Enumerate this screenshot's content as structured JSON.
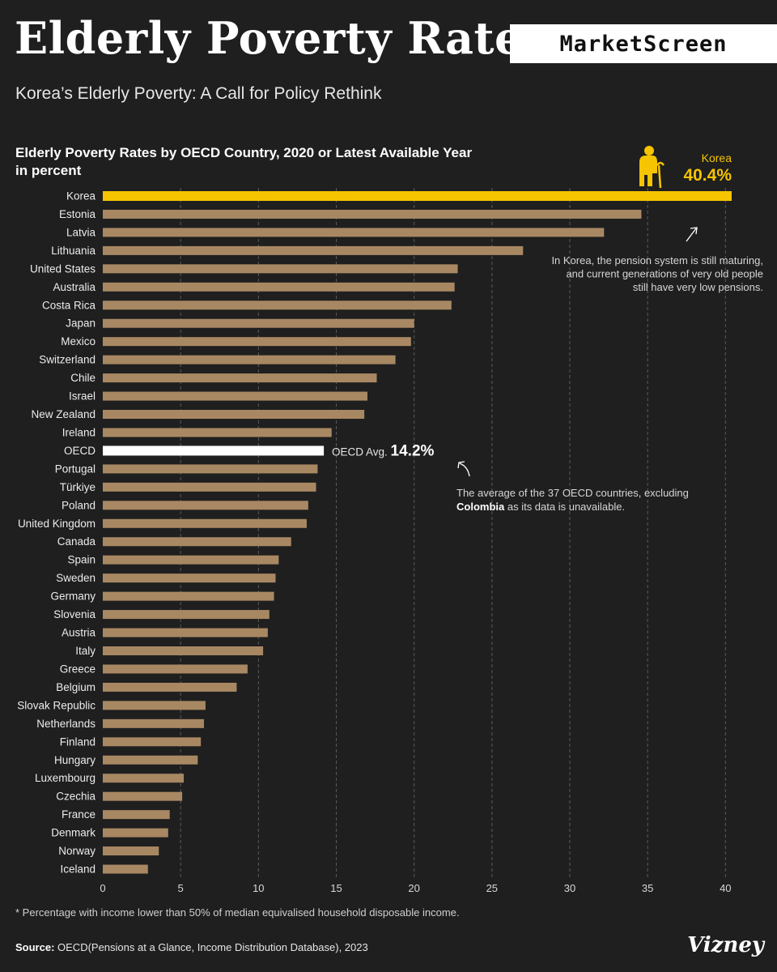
{
  "header": {
    "title": "Elderly Poverty Rate",
    "brand": "MarketScreen",
    "subtitle": "Korea’s Elderly Poverty: A Call for Policy Rethink"
  },
  "chart_data": {
    "type": "bar",
    "orientation": "horizontal",
    "title_line1": "Elderly Poverty Rates by OECD Country, 2020 or Latest Available Year",
    "title_line2": "in percent",
    "categories": [
      "Korea",
      "Estonia",
      "Latvia",
      "Lithuania",
      "United States",
      "Australia",
      "Costa Rica",
      "Japan",
      "Mexico",
      "Switzerland",
      "Chile",
      "Israel",
      "New Zealand",
      "Ireland",
      "OECD",
      "Portugal",
      "Türkiye",
      "Poland",
      "United Kingdom",
      "Canada",
      "Spain",
      "Sweden",
      "Germany",
      "Slovenia",
      "Austria",
      "Italy",
      "Greece",
      "Belgium",
      "Slovak Republic",
      "Netherlands",
      "Finland",
      "Hungary",
      "Luxembourg",
      "Czechia",
      "France",
      "Denmark",
      "Norway",
      "Iceland"
    ],
    "values": [
      40.4,
      34.6,
      32.2,
      27.0,
      22.8,
      22.6,
      22.4,
      20.0,
      19.8,
      18.8,
      17.6,
      17.0,
      16.8,
      14.7,
      14.2,
      13.8,
      13.7,
      13.2,
      13.1,
      12.1,
      11.3,
      11.1,
      11.0,
      10.7,
      10.6,
      10.3,
      9.3,
      8.6,
      6.6,
      6.5,
      6.3,
      6.1,
      5.2,
      5.1,
      4.3,
      4.2,
      3.6,
      2.9
    ],
    "xlim": [
      0,
      40.4
    ],
    "xticks": [
      0,
      5,
      10,
      15,
      20,
      25,
      30,
      35,
      40
    ],
    "grid": true,
    "colors": {
      "default": "#a88863",
      "highlight": "#f6c400",
      "average": "#ffffff"
    },
    "highlight": {
      "label": "Korea",
      "value_label": "40.4%",
      "icon": "elderly-person-icon",
      "note": [
        "In Korea, the pension system is still maturing,",
        "and current generations of very old people",
        "still have very low pensions."
      ]
    },
    "average": {
      "label_prefix": "OECD Avg.",
      "value_label": "14.2%",
      "note_line1": "The average of the 37 OECD countries, excluding",
      "note_bold": "Colombia",
      "note_rest": " as its data is unavailable."
    }
  },
  "footer": {
    "footnote": "* Percentage with income lower than 50% of median equivalised household disposable income.",
    "source_label": "Source:",
    "source_text": " OECD(Pensions at a Glance, Income Distribution Database), 2023",
    "logo": "Vizney"
  }
}
